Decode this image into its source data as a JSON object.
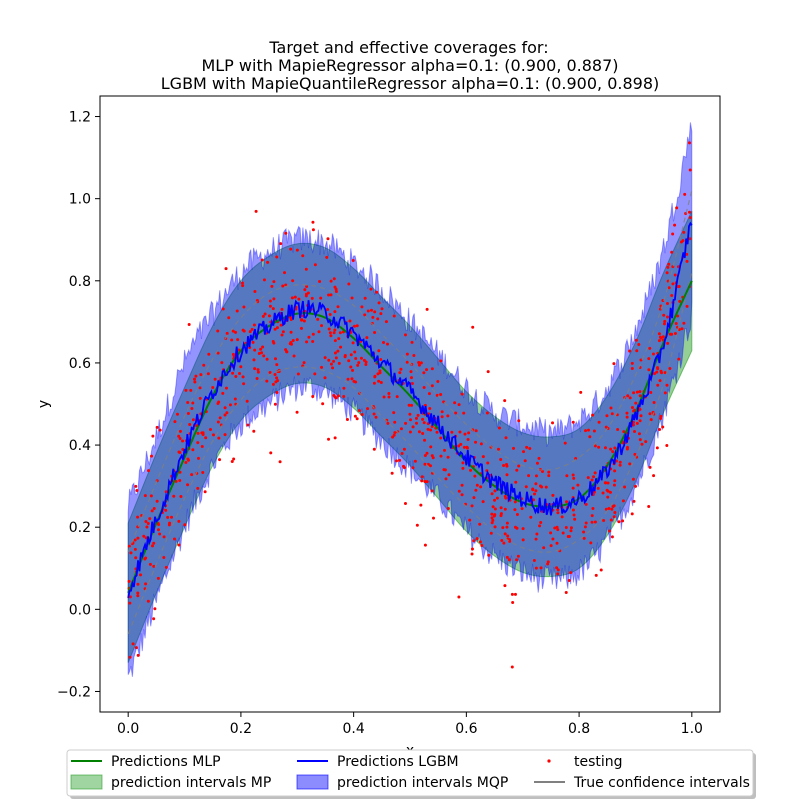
{
  "chart_data": {
    "type": "line",
    "title_lines": [
      "Target and effective coverages for:",
      "MLP with MapieRegressor alpha=0.1: (0.900, 0.887)",
      "LGBM with MapieQuantileRegressor alpha=0.1: (0.900, 0.898)"
    ],
    "xlabel": "x",
    "ylabel": "y",
    "xlim": [
      -0.05,
      1.05
    ],
    "ylim": [
      -0.25,
      1.25
    ],
    "xticks": [
      0.0,
      0.2,
      0.4,
      0.6,
      0.8,
      1.0
    ],
    "xtick_labels": [
      "0.0",
      "0.2",
      "0.4",
      "0.6",
      "0.8",
      "1.0"
    ],
    "yticks": [
      -0.2,
      0.0,
      0.2,
      0.4,
      0.6,
      0.8,
      1.0,
      1.2
    ],
    "ytick_labels": [
      "−0.2",
      "0.0",
      "0.2",
      "0.4",
      "0.6",
      "0.8",
      "1.0",
      "1.2"
    ],
    "grid": false,
    "legend_placement": "below plot",
    "colors": {
      "mlp": "#008000",
      "lgbm": "#0000ff",
      "testing": "#ff0000",
      "true_ci": "#808080",
      "interval_mp": "#2ca02c",
      "interval_mqp": "#0000ff"
    },
    "legend": [
      {
        "label": "Predictions MLP",
        "kind": "line",
        "color": "#008000"
      },
      {
        "label": "prediction intervals MP",
        "kind": "patch",
        "color": "#2ca02c"
      },
      {
        "label": "Predictions LGBM",
        "kind": "line",
        "color": "#0000ff"
      },
      {
        "label": "prediction intervals MQP",
        "kind": "patch",
        "color": "#0000ff"
      },
      {
        "label": "testing",
        "kind": "marker",
        "color": "#ff0000"
      },
      {
        "label": "True confidence intervals",
        "kind": "line",
        "color": "#808080"
      }
    ],
    "series": [
      {
        "name": "Predictions MLP",
        "x": [
          0.0,
          0.05,
          0.1,
          0.15,
          0.2,
          0.25,
          0.3,
          0.35,
          0.4,
          0.45,
          0.5,
          0.55,
          0.6,
          0.65,
          0.7,
          0.75,
          0.8,
          0.85,
          0.9,
          0.95,
          1.0
        ],
        "y": [
          0.04,
          0.21,
          0.37,
          0.52,
          0.63,
          0.69,
          0.72,
          0.71,
          0.66,
          0.59,
          0.52,
          0.44,
          0.36,
          0.3,
          0.26,
          0.25,
          0.27,
          0.35,
          0.48,
          0.65,
          0.8
        ]
      },
      {
        "name": "Predictions LGBM",
        "x": [
          0.0,
          0.05,
          0.1,
          0.15,
          0.2,
          0.25,
          0.3,
          0.35,
          0.4,
          0.45,
          0.5,
          0.55,
          0.6,
          0.65,
          0.7,
          0.75,
          0.8,
          0.85,
          0.9,
          0.95,
          1.0
        ],
        "y": [
          0.04,
          0.22,
          0.39,
          0.53,
          0.63,
          0.69,
          0.73,
          0.72,
          0.67,
          0.6,
          0.53,
          0.45,
          0.37,
          0.31,
          0.27,
          0.25,
          0.27,
          0.34,
          0.47,
          0.65,
          0.95
        ]
      },
      {
        "name": "prediction intervals MP",
        "x": [
          0.0,
          0.05,
          0.1,
          0.15,
          0.2,
          0.25,
          0.3,
          0.35,
          0.4,
          0.45,
          0.5,
          0.55,
          0.6,
          0.65,
          0.7,
          0.75,
          0.8,
          0.85,
          0.9,
          0.95,
          1.0
        ],
        "lower": [
          -0.13,
          0.04,
          0.2,
          0.35,
          0.46,
          0.52,
          0.55,
          0.54,
          0.49,
          0.42,
          0.35,
          0.27,
          0.19,
          0.13,
          0.09,
          0.08,
          0.1,
          0.18,
          0.31,
          0.48,
          0.63
        ],
        "upper": [
          0.21,
          0.38,
          0.54,
          0.69,
          0.8,
          0.86,
          0.89,
          0.88,
          0.83,
          0.76,
          0.69,
          0.61,
          0.53,
          0.47,
          0.43,
          0.42,
          0.44,
          0.52,
          0.65,
          0.82,
          0.97
        ]
      },
      {
        "name": "prediction intervals MQP",
        "x": [
          0.0,
          0.05,
          0.1,
          0.15,
          0.2,
          0.25,
          0.3,
          0.35,
          0.4,
          0.45,
          0.5,
          0.55,
          0.6,
          0.65,
          0.7,
          0.75,
          0.8,
          0.85,
          0.9,
          0.95,
          1.0
        ],
        "lower": [
          -0.17,
          0.02,
          0.2,
          0.35,
          0.45,
          0.5,
          0.54,
          0.53,
          0.48,
          0.41,
          0.34,
          0.27,
          0.19,
          0.13,
          0.09,
          0.07,
          0.09,
          0.17,
          0.3,
          0.48,
          0.72
        ],
        "upper": [
          0.25,
          0.42,
          0.6,
          0.72,
          0.82,
          0.87,
          0.9,
          0.89,
          0.84,
          0.78,
          0.7,
          0.62,
          0.54,
          0.48,
          0.45,
          0.43,
          0.46,
          0.54,
          0.68,
          0.88,
          1.18
        ]
      },
      {
        "name": "True confidence intervals",
        "x": [
          0.0,
          0.05,
          0.1,
          0.15,
          0.2,
          0.25,
          0.3,
          0.35,
          0.4,
          0.45,
          0.5,
          0.55,
          0.6,
          0.65,
          0.7,
          0.75,
          0.8,
          0.85,
          0.9,
          0.95,
          1.0
        ],
        "lower": [
          -0.06,
          0.11,
          0.27,
          0.41,
          0.51,
          0.57,
          0.59,
          0.58,
          0.54,
          0.47,
          0.4,
          0.32,
          0.25,
          0.19,
          0.15,
          0.14,
          0.17,
          0.24,
          0.37,
          0.55,
          0.82
        ],
        "upper": [
          0.14,
          0.31,
          0.47,
          0.61,
          0.71,
          0.77,
          0.79,
          0.78,
          0.74,
          0.67,
          0.6,
          0.52,
          0.45,
          0.39,
          0.35,
          0.34,
          0.37,
          0.44,
          0.57,
          0.75,
          1.02
        ]
      }
    ],
    "testing_points_count": 1000,
    "testing_points_note_shape": "cubic trend with noise",
    "testing": {
      "trend_x": [
        0.0,
        0.05,
        0.1,
        0.15,
        0.2,
        0.25,
        0.3,
        0.35,
        0.4,
        0.45,
        0.5,
        0.55,
        0.6,
        0.65,
        0.7,
        0.75,
        0.8,
        0.85,
        0.9,
        0.95,
        1.0
      ],
      "trend_y": [
        0.04,
        0.21,
        0.37,
        0.51,
        0.61,
        0.67,
        0.69,
        0.68,
        0.64,
        0.57,
        0.5,
        0.42,
        0.35,
        0.29,
        0.25,
        0.24,
        0.27,
        0.34,
        0.47,
        0.65,
        0.92
      ],
      "noise_sd": 0.1
    }
  }
}
